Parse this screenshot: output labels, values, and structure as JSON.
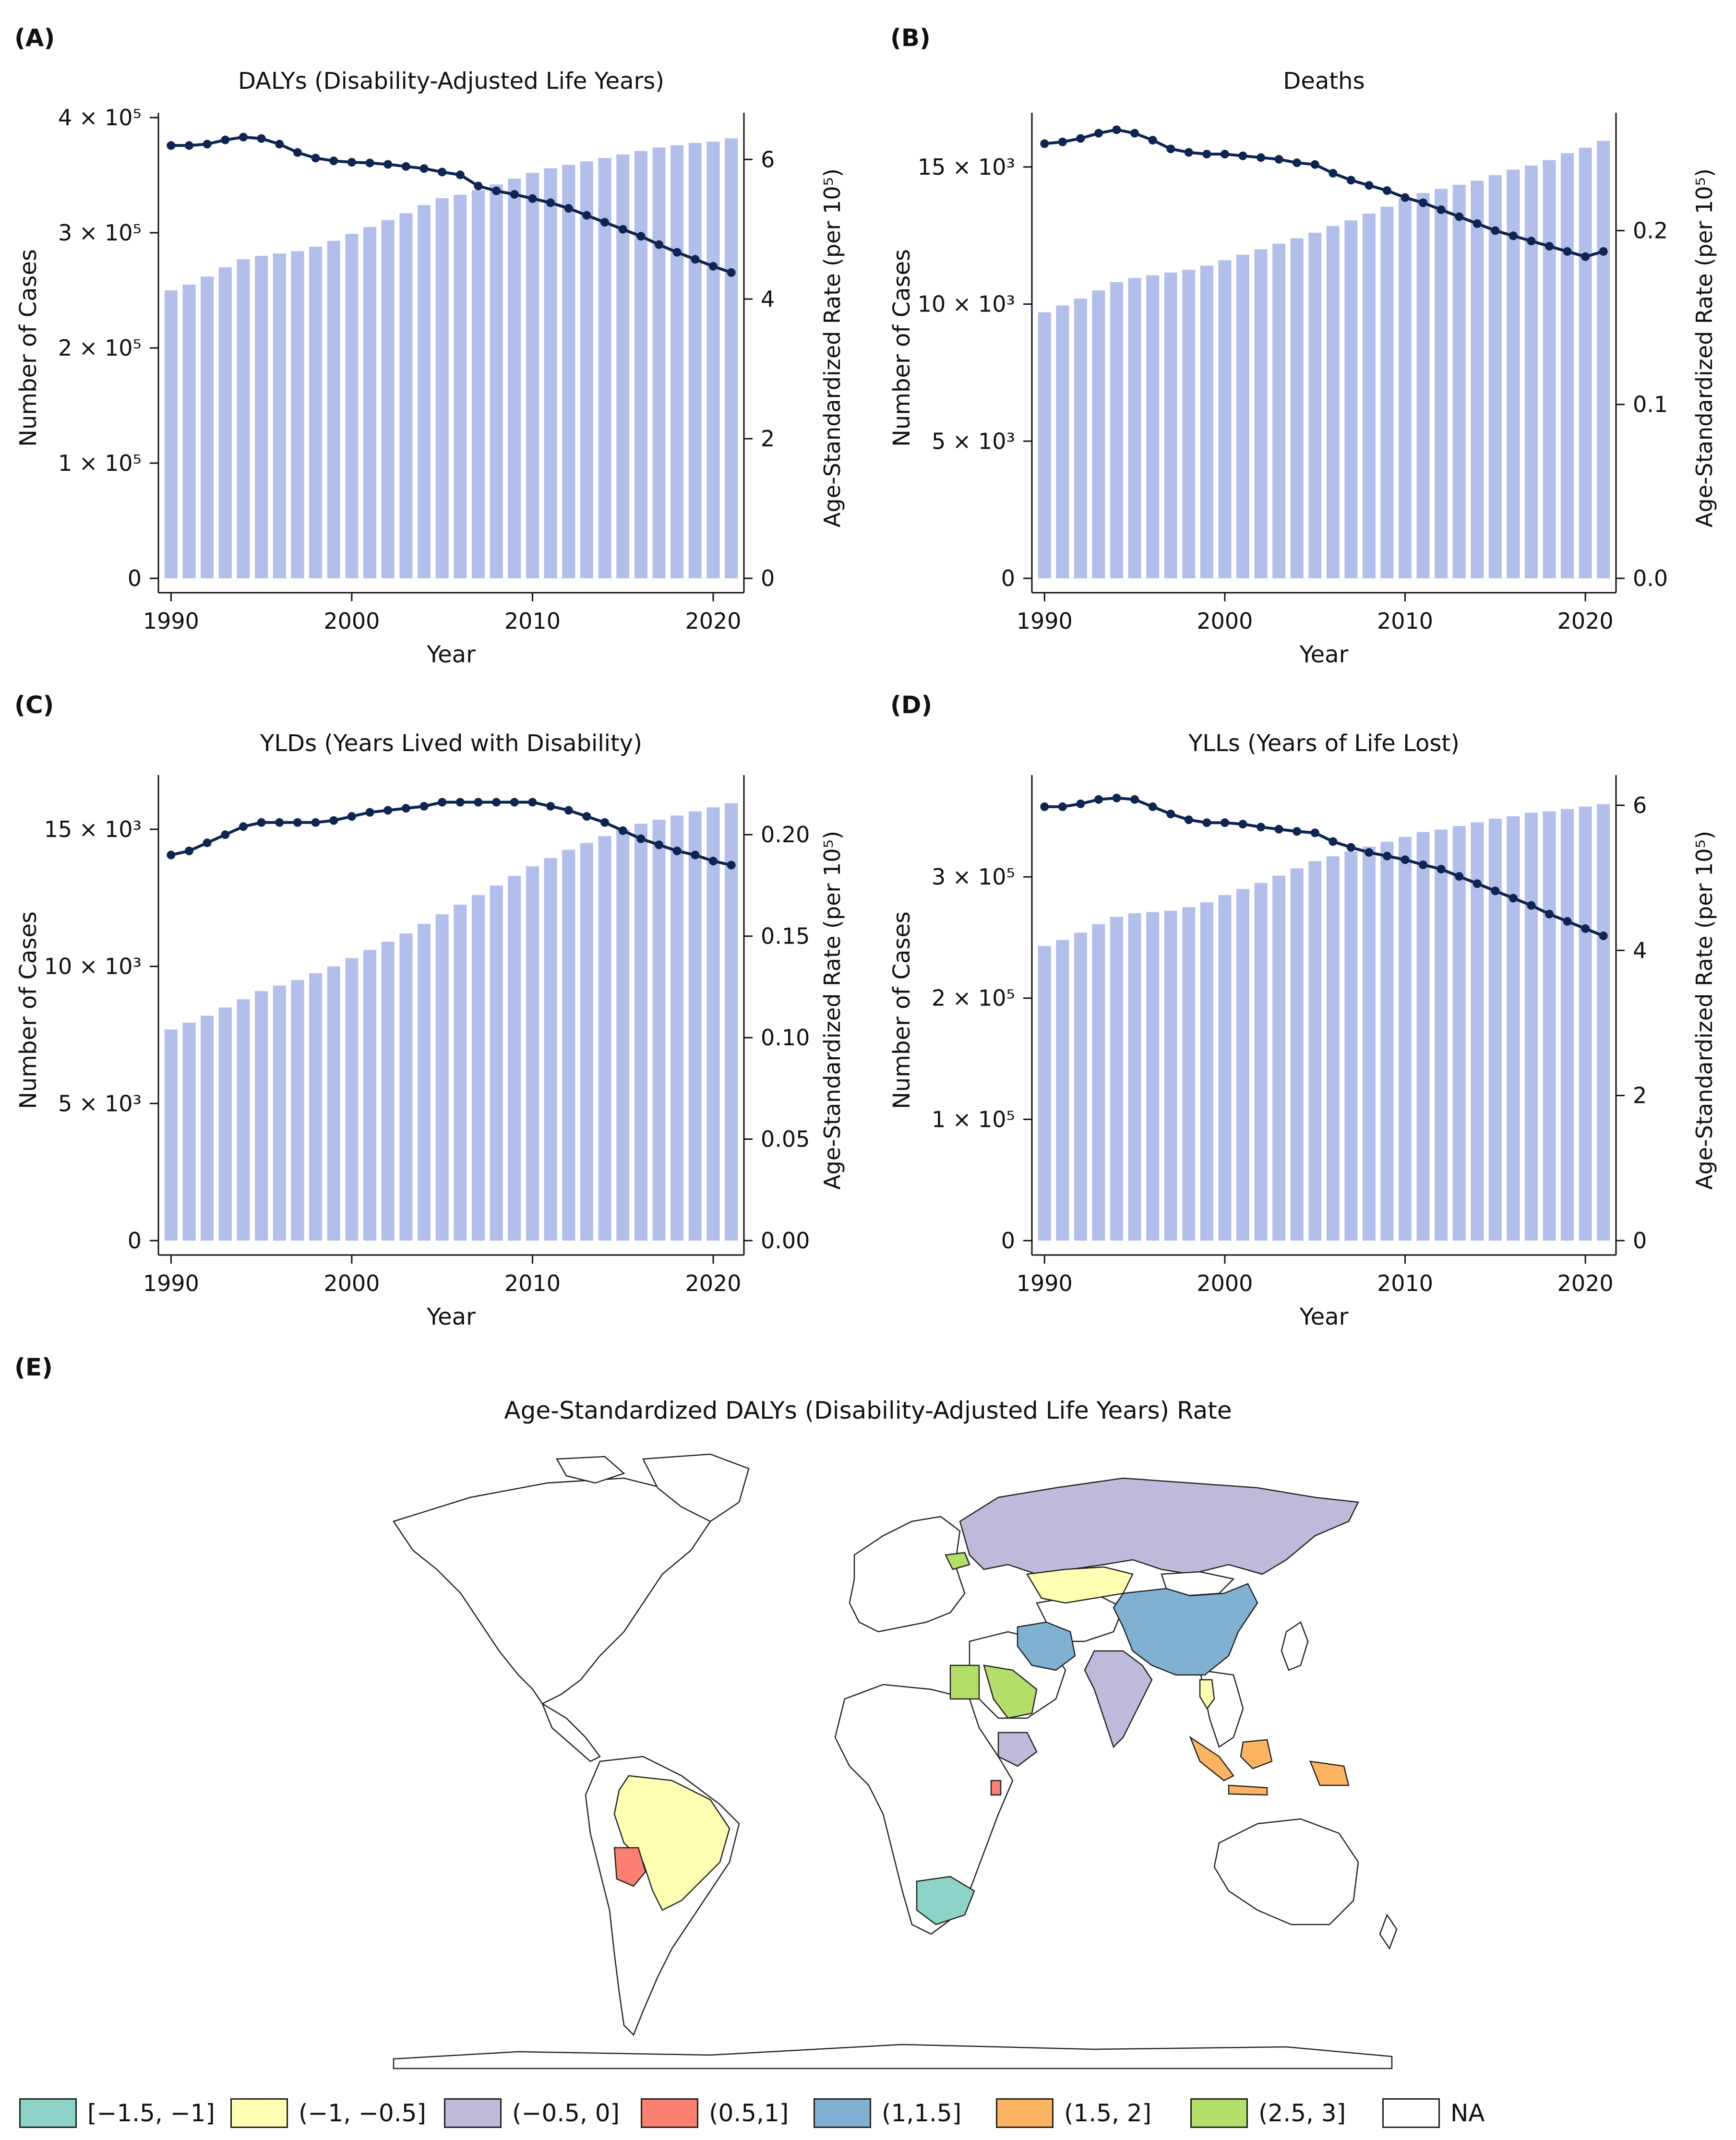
{
  "panels": [
    {
      "label": "(A)",
      "chart_data": {
        "type": "bar+line",
        "title": "DALYs (Disability-Adjusted Life Years)",
        "xlabel": "Year",
        "ylabel": "Number of Cases",
        "y2label": "Age-Standardized Rate (per 10⁵)",
        "x": [
          1990,
          1991,
          1992,
          1993,
          1994,
          1995,
          1996,
          1997,
          1998,
          1999,
          2000,
          2001,
          2002,
          2003,
          2004,
          2005,
          2006,
          2007,
          2008,
          2009,
          2010,
          2011,
          2012,
          2013,
          2014,
          2015,
          2016,
          2017,
          2018,
          2019,
          2020,
          2021
        ],
        "xticks": [
          1990,
          2000,
          2010,
          2020
        ],
        "ylim": [
          0,
          400000
        ],
        "yticks": [
          0,
          100000,
          200000,
          300000,
          400000
        ],
        "ytick_labels": [
          "0",
          "1 × 10⁵",
          "2 × 10⁵",
          "3 × 10⁵",
          "4 × 10⁵"
        ],
        "y2lim": [
          0,
          6.6
        ],
        "y2ticks": [
          0,
          2,
          4,
          6
        ],
        "y2tick_labels": [
          "0",
          "2",
          "4",
          "6"
        ],
        "bars": [
          250000,
          255000,
          262000,
          270000,
          277000,
          280000,
          282000,
          284000,
          288000,
          293000,
          299000,
          305000,
          311000,
          317000,
          324000,
          330000,
          333000,
          337000,
          342000,
          347000,
          352000,
          356000,
          359000,
          362000,
          365000,
          368000,
          371000,
          374000,
          376000,
          378000,
          379000,
          382000
        ],
        "line": [
          6.2,
          6.2,
          6.22,
          6.28,
          6.32,
          6.3,
          6.22,
          6.1,
          6.02,
          5.98,
          5.96,
          5.95,
          5.93,
          5.9,
          5.87,
          5.82,
          5.78,
          5.62,
          5.55,
          5.5,
          5.44,
          5.38,
          5.3,
          5.2,
          5.1,
          5.0,
          4.9,
          4.78,
          4.67,
          4.57,
          4.47,
          4.38
        ]
      }
    },
    {
      "label": "(B)",
      "chart_data": {
        "type": "bar+line",
        "title": "Deaths",
        "xlabel": "Year",
        "ylabel": "Number of Cases",
        "y2label": "Age-Standardized Rate (per 10⁵)",
        "x": [
          1990,
          1991,
          1992,
          1993,
          1994,
          1995,
          1996,
          1997,
          1998,
          1999,
          2000,
          2001,
          2002,
          2003,
          2004,
          2005,
          2006,
          2007,
          2008,
          2009,
          2010,
          2011,
          2012,
          2013,
          2014,
          2015,
          2016,
          2017,
          2018,
          2019,
          2020,
          2021
        ],
        "xticks": [
          1990,
          2000,
          2010,
          2020
        ],
        "ylim": [
          0,
          16800
        ],
        "yticks": [
          0,
          5000,
          10000,
          15000
        ],
        "ytick_labels": [
          "0",
          "5 × 10³",
          "10 × 10³",
          "15 × 10³"
        ],
        "y2lim": [
          0,
          0.265
        ],
        "y2ticks": [
          0,
          0.1,
          0.2
        ],
        "y2tick_labels": [
          "0.0",
          "0.1",
          "0.2"
        ],
        "bars": [
          9700,
          9950,
          10200,
          10500,
          10800,
          10950,
          11050,
          11150,
          11250,
          11400,
          11600,
          11800,
          12000,
          12200,
          12400,
          12600,
          12850,
          13050,
          13300,
          13550,
          13850,
          14050,
          14200,
          14350,
          14500,
          14700,
          14900,
          15050,
          15250,
          15500,
          15700,
          15950
        ],
        "line": [
          0.25,
          0.251,
          0.253,
          0.256,
          0.258,
          0.256,
          0.252,
          0.247,
          0.245,
          0.244,
          0.244,
          0.243,
          0.242,
          0.241,
          0.239,
          0.238,
          0.233,
          0.229,
          0.226,
          0.223,
          0.219,
          0.216,
          0.212,
          0.208,
          0.204,
          0.2,
          0.197,
          0.194,
          0.191,
          0.188,
          0.185,
          0.188
        ]
      }
    },
    {
      "label": "(C)",
      "chart_data": {
        "type": "bar+line",
        "title": "YLDs (Years Lived with Disability)",
        "xlabel": "Year",
        "ylabel": "Number of Cases",
        "y2label": "Age-Standardized Rate (per 10⁵)",
        "x": [
          1990,
          1991,
          1992,
          1993,
          1994,
          1995,
          1996,
          1997,
          1998,
          1999,
          2000,
          2001,
          2002,
          2003,
          2004,
          2005,
          2006,
          2007,
          2008,
          2009,
          2010,
          2011,
          2012,
          2013,
          2014,
          2015,
          2016,
          2017,
          2018,
          2019,
          2020,
          2021
        ],
        "xticks": [
          1990,
          2000,
          2010,
          2020
        ],
        "ylim": [
          0,
          16800
        ],
        "yticks": [
          0,
          5000,
          10000,
          15000
        ],
        "ytick_labels": [
          "0",
          "5 × 10³",
          "10 × 10³",
          "15 × 10³"
        ],
        "y2lim": [
          0,
          0.227
        ],
        "y2ticks": [
          0,
          0.05,
          0.1,
          0.15,
          0.2
        ],
        "y2tick_labels": [
          "0.00",
          "0.05",
          "0.10",
          "0.15",
          "0.20"
        ],
        "bars": [
          7700,
          7950,
          8200,
          8500,
          8800,
          9100,
          9300,
          9500,
          9750,
          10000,
          10300,
          10600,
          10900,
          11200,
          11550,
          11900,
          12250,
          12600,
          12950,
          13300,
          13650,
          13950,
          14250,
          14500,
          14750,
          15000,
          15200,
          15350,
          15500,
          15650,
          15800,
          15950
        ],
        "line": [
          0.19,
          0.192,
          0.196,
          0.2,
          0.204,
          0.206,
          0.206,
          0.206,
          0.206,
          0.207,
          0.209,
          0.211,
          0.212,
          0.213,
          0.214,
          0.216,
          0.216,
          0.216,
          0.216,
          0.216,
          0.216,
          0.214,
          0.212,
          0.209,
          0.206,
          0.202,
          0.198,
          0.195,
          0.192,
          0.19,
          0.187,
          0.185
        ]
      }
    },
    {
      "label": "(D)",
      "chart_data": {
        "type": "bar+line",
        "title": "YLLs (Years of Life Lost)",
        "xlabel": "Year",
        "ylabel": "Number of Cases",
        "y2label": "Age-Standardized Rate (per 10⁵)",
        "x": [
          1990,
          1991,
          1992,
          1993,
          1994,
          1995,
          1996,
          1997,
          1998,
          1999,
          2000,
          2001,
          2002,
          2003,
          2004,
          2005,
          2006,
          2007,
          2008,
          2009,
          2010,
          2011,
          2012,
          2013,
          2014,
          2015,
          2016,
          2017,
          2018,
          2019,
          2020,
          2021
        ],
        "xticks": [
          1990,
          2000,
          2010,
          2020
        ],
        "ylim": [
          0,
          380000
        ],
        "yticks": [
          0,
          100000,
          200000,
          300000
        ],
        "ytick_labels": [
          "0",
          "1 × 10⁵",
          "2 × 10⁵",
          "3 × 10⁵"
        ],
        "y2lim": [
          0,
          6.35
        ],
        "y2ticks": [
          0,
          2,
          4,
          6
        ],
        "y2tick_labels": [
          "0",
          "2",
          "4",
          "6"
        ],
        "bars": [
          243000,
          248000,
          254000,
          261000,
          267000,
          270000,
          271000,
          272000,
          275000,
          279000,
          285000,
          290000,
          295000,
          301000,
          307000,
          313000,
          317000,
          321000,
          325000,
          329000,
          333000,
          337000,
          339000,
          342000,
          345000,
          348000,
          350000,
          353000,
          354000,
          356000,
          358000,
          360000
        ],
        "line": [
          5.98,
          5.98,
          6.02,
          6.08,
          6.1,
          6.08,
          5.98,
          5.88,
          5.8,
          5.76,
          5.76,
          5.74,
          5.7,
          5.67,
          5.64,
          5.62,
          5.5,
          5.42,
          5.35,
          5.3,
          5.25,
          5.18,
          5.12,
          5.02,
          4.92,
          4.82,
          4.72,
          4.62,
          4.5,
          4.4,
          4.3,
          4.2
        ]
      }
    }
  ],
  "map": {
    "label": "(E)",
    "title": "Age-Standardized DALYs (Disability-Adjusted Life Years) Rate"
  },
  "legend": [
    {
      "label": "[−1.5, −1]",
      "color": "#8ed3c7"
    },
    {
      "label": "(−1, −0.5]",
      "color": "#ffffb3"
    },
    {
      "label": "(−0.5, 0]",
      "color": "#bebada"
    },
    {
      "label": "(0.5,1]",
      "color": "#fb8072"
    },
    {
      "label": "(1,1.5]",
      "color": "#80b1d3"
    },
    {
      "label": "(1.5, 2]",
      "color": "#fdb462"
    },
    {
      "label": "(2.5, 3]",
      "color": "#b3de69"
    },
    {
      "label": "NA",
      "color": "#ffffff"
    }
  ],
  "colors": {
    "bar": "#b3bfeb",
    "line": "#0d2550"
  }
}
